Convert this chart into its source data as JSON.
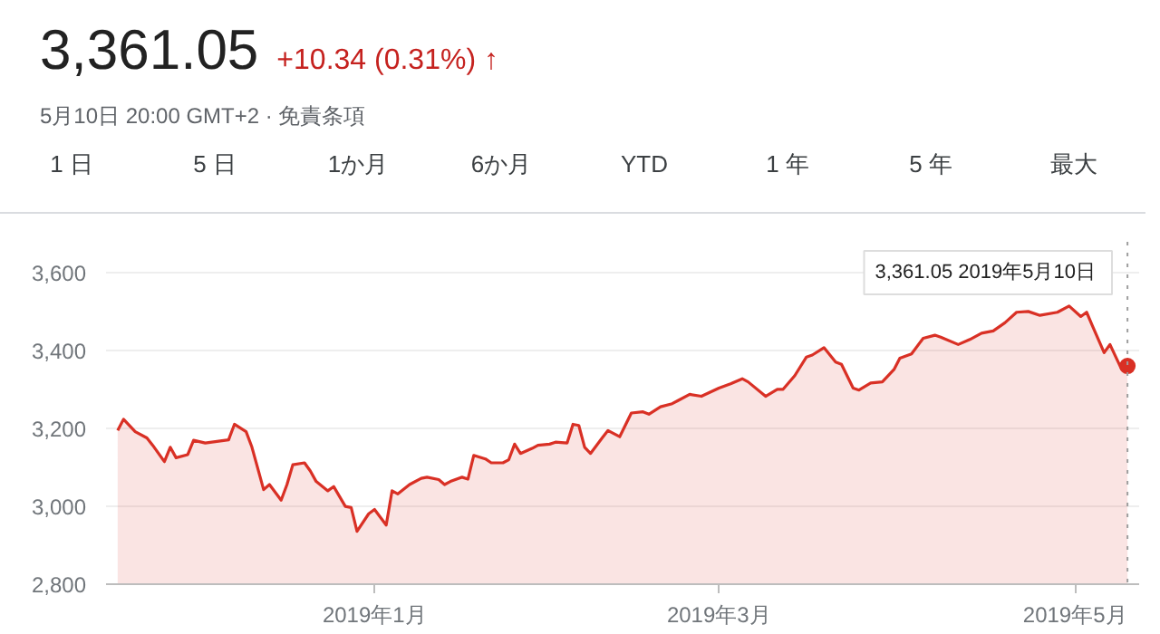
{
  "chart_data": {
    "type": "area",
    "title": "3,361.05",
    "subtitle": "5月10日 20:00 GMT+2 · 免責条項",
    "annotations": [
      "+10.34 (0.31%) ↑",
      "1 日",
      "5 日",
      "1か月",
      "6か月",
      "YTD",
      "1 年",
      "5 年",
      "最大",
      "3,361.05  2019年5月10日"
    ],
    "x": [
      "2018-11-18",
      "2018-11-19",
      "2018-11-21",
      "2018-11-23",
      "2018-11-24",
      "2018-11-26",
      "2018-11-27",
      "2018-11-28",
      "2018-11-30",
      "2018-12-01",
      "2018-12-03",
      "2018-12-07",
      "2018-12-08",
      "2018-12-10",
      "2018-12-11",
      "2018-12-13",
      "2018-12-14",
      "2018-12-16",
      "2018-12-17",
      "2018-12-18",
      "2018-12-20",
      "2018-12-21",
      "2018-12-22",
      "2018-12-24",
      "2018-12-25",
      "2018-12-27",
      "2018-12-28",
      "2018-12-29",
      "2018-12-31",
      "2019-01-01",
      "2019-01-03",
      "2019-01-04",
      "2019-01-05",
      "2019-01-07",
      "2019-01-09",
      "2019-01-10",
      "2019-01-12",
      "2019-01-13",
      "2019-01-14",
      "2019-01-16",
      "2019-01-17",
      "2019-01-18",
      "2019-01-20",
      "2019-01-21",
      "2019-01-23",
      "2019-01-24",
      "2019-01-25",
      "2019-01-26",
      "2019-01-28",
      "2019-01-29",
      "2019-01-31",
      "2019-02-01",
      "2019-02-03",
      "2019-02-04",
      "2019-02-05",
      "2019-02-06",
      "2019-02-07",
      "2019-02-09",
      "2019-02-10",
      "2019-02-12",
      "2019-02-14",
      "2019-02-16",
      "2019-02-17",
      "2019-02-19",
      "2019-02-21",
      "2019-02-22",
      "2019-02-24",
      "2019-02-26",
      "2019-03-01",
      "2019-03-03",
      "2019-03-05",
      "2019-03-06",
      "2019-03-09",
      "2019-03-11",
      "2019-03-12",
      "2019-03-14",
      "2019-03-16",
      "2019-03-17",
      "2019-03-19",
      "2019-03-21",
      "2019-03-22",
      "2019-03-24",
      "2019-03-25",
      "2019-03-27",
      "2019-03-29",
      "2019-03-31",
      "2019-04-01",
      "2019-04-03",
      "2019-04-05",
      "2019-04-07",
      "2019-04-08",
      "2019-04-11",
      "2019-04-13",
      "2019-04-15",
      "2019-04-17",
      "2019-04-19",
      "2019-04-21",
      "2019-04-23",
      "2019-04-25",
      "2019-04-28",
      "2019-04-30",
      "2019-05-02",
      "2019-05-03",
      "2019-05-04",
      "2019-05-06",
      "2019-05-07",
      "2019-05-09",
      "2019-05-10"
    ],
    "series": [
      {
        "color": "#d93025",
        "values": [
          3195,
          3224,
          3192,
          3176,
          3157,
          3115,
          3152,
          3125,
          3133,
          3170,
          3163,
          3171,
          3211,
          3192,
          3152,
          3043,
          3056,
          3016,
          3056,
          3107,
          3112,
          3091,
          3064,
          3040,
          3051,
          3000,
          2997,
          2936,
          2981,
          2992,
          2952,
          3040,
          3032,
          3056,
          3072,
          3075,
          3069,
          3056,
          3064,
          3075,
          3070,
          3131,
          3122,
          3112,
          3112,
          3120,
          3160,
          3136,
          3149,
          3157,
          3160,
          3165,
          3163,
          3211,
          3208,
          3152,
          3136,
          3176,
          3195,
          3179,
          3240,
          3243,
          3237,
          3256,
          3264,
          3272,
          3288,
          3283,
          3304,
          3315,
          3328,
          3320,
          3283,
          3301,
          3301,
          3336,
          3384,
          3389,
          3408,
          3371,
          3365,
          3304,
          3299,
          3317,
          3320,
          3352,
          3381,
          3392,
          3432,
          3440,
          3435,
          3416,
          3429,
          3445,
          3451,
          3472,
          3499,
          3501,
          3491,
          3499,
          3515,
          3488,
          3499,
          3464,
          3395,
          3416,
          3352,
          3361
        ]
      }
    ],
    "xlim": [
      "2018-11-16",
      "2019-05-12"
    ],
    "xticks": [
      {
        "value": "2019-01-01",
        "label": "2019年1月"
      },
      {
        "value": "2019-03-01",
        "label": "2019年3月"
      },
      {
        "value": "2019-05-01",
        "label": "2019年5月"
      }
    ],
    "ylim": [
      2800,
      3680
    ],
    "yticks": [
      {
        "value": 2800,
        "label": "2,800"
      },
      {
        "value": 3000,
        "label": "3,000"
      },
      {
        "value": 3200,
        "label": "3,200"
      },
      {
        "value": 3400,
        "label": "3,400"
      },
      {
        "value": 3600,
        "label": "3,600"
      }
    ],
    "grid": "y",
    "ref_lines": [
      {
        "axis": "x",
        "value": "2019-05-10",
        "color": "#9e9e9e",
        "line_style": "dotted"
      }
    ]
  }
}
